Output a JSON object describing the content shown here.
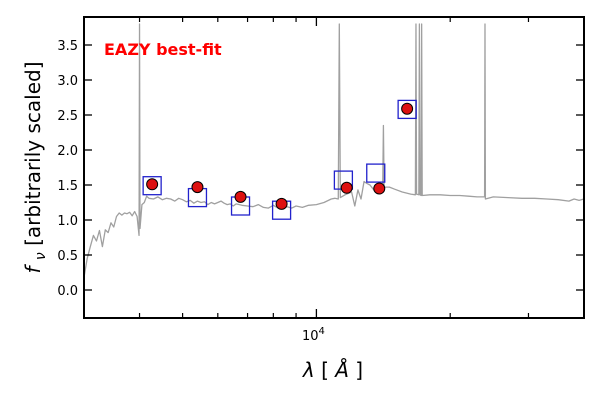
{
  "chart_data": {
    "type": "scatter",
    "xscale": "log",
    "xlim": [
      3000,
      40000
    ],
    "ylim": [
      -0.4,
      3.9
    ],
    "ylabel_parts": [
      "f",
      "ν",
      " [arbitrarily scaled]"
    ],
    "xlabel_parts": [
      "λ",
      " [",
      "Å",
      "]"
    ],
    "annotation": "EAZY best-fit",
    "annotation_color": "#ff0000",
    "template_color": "#a0a0a0",
    "model_point_color": "#dd1111",
    "observed_box_color": "#2222cc",
    "y_ticks": [
      {
        "value": 0.0,
        "label": "0.0"
      },
      {
        "value": 0.5,
        "label": "0.5"
      },
      {
        "value": 1.0,
        "label": "1.0"
      },
      {
        "value": 1.5,
        "label": "1.5"
      },
      {
        "value": 2.0,
        "label": "2.0"
      },
      {
        "value": 2.5,
        "label": "2.5"
      },
      {
        "value": 3.0,
        "label": "3.0"
      },
      {
        "value": 3.5,
        "label": "3.5"
      }
    ],
    "x_major_ticks": [
      {
        "value": 10000,
        "base": "10",
        "exp": "4"
      }
    ],
    "x_minor_ticks": [
      4000,
      5000,
      6000,
      7000,
      8000,
      9000,
      20000,
      30000
    ],
    "series": [
      {
        "role": "observed",
        "marker": "open-square",
        "points": [
          {
            "x": 4270,
            "y": 1.49
          },
          {
            "x": 5400,
            "y": 1.32
          },
          {
            "x": 6750,
            "y": 1.2
          },
          {
            "x": 8350,
            "y": 1.14
          },
          {
            "x": 11500,
            "y": 1.57
          },
          {
            "x": 13600,
            "y": 1.67
          },
          {
            "x": 16000,
            "y": 2.58
          }
        ]
      },
      {
        "role": "model",
        "marker": "filled-circle",
        "points": [
          {
            "x": 4270,
            "y": 1.51
          },
          {
            "x": 5400,
            "y": 1.47
          },
          {
            "x": 6750,
            "y": 1.33
          },
          {
            "x": 8350,
            "y": 1.23
          },
          {
            "x": 11700,
            "y": 1.46
          },
          {
            "x": 13850,
            "y": 1.45
          },
          {
            "x": 16000,
            "y": 2.59
          }
        ]
      },
      {
        "role": "template-spectrum",
        "marker": "line",
        "points": [
          {
            "x": 3000,
            "y": 0.18
          },
          {
            "x": 3050,
            "y": 0.45
          },
          {
            "x": 3100,
            "y": 0.62
          },
          {
            "x": 3150,
            "y": 0.78
          },
          {
            "x": 3200,
            "y": 0.7
          },
          {
            "x": 3250,
            "y": 0.85
          },
          {
            "x": 3300,
            "y": 0.62
          },
          {
            "x": 3350,
            "y": 0.86
          },
          {
            "x": 3400,
            "y": 0.82
          },
          {
            "x": 3450,
            "y": 0.96
          },
          {
            "x": 3500,
            "y": 0.9
          },
          {
            "x": 3550,
            "y": 1.05
          },
          {
            "x": 3600,
            "y": 1.1
          },
          {
            "x": 3650,
            "y": 1.07
          },
          {
            "x": 3700,
            "y": 1.1
          },
          {
            "x": 3750,
            "y": 1.09
          },
          {
            "x": 3800,
            "y": 1.11
          },
          {
            "x": 3850,
            "y": 1.06
          },
          {
            "x": 3900,
            "y": 1.12
          },
          {
            "x": 3950,
            "y": 1.05
          },
          {
            "x": 3990,
            "y": 0.78
          },
          {
            "x": 4000,
            "y": 3.8
          },
          {
            "x": 4010,
            "y": 0.88
          },
          {
            "x": 4050,
            "y": 1.22
          },
          {
            "x": 4100,
            "y": 1.25
          },
          {
            "x": 4150,
            "y": 1.34
          },
          {
            "x": 4200,
            "y": 1.31
          },
          {
            "x": 4300,
            "y": 1.3
          },
          {
            "x": 4400,
            "y": 1.33
          },
          {
            "x": 4500,
            "y": 1.29
          },
          {
            "x": 4600,
            "y": 1.31
          },
          {
            "x": 4700,
            "y": 1.3
          },
          {
            "x": 4800,
            "y": 1.27
          },
          {
            "x": 4900,
            "y": 1.31
          },
          {
            "x": 5000,
            "y": 1.29
          },
          {
            "x": 5100,
            "y": 1.26
          },
          {
            "x": 5200,
            "y": 1.28
          },
          {
            "x": 5300,
            "y": 1.24
          },
          {
            "x": 5400,
            "y": 1.27
          },
          {
            "x": 5500,
            "y": 1.25
          },
          {
            "x": 5600,
            "y": 1.26
          },
          {
            "x": 5700,
            "y": 1.22
          },
          {
            "x": 5800,
            "y": 1.25
          },
          {
            "x": 5900,
            "y": 1.23
          },
          {
            "x": 6000,
            "y": 1.25
          },
          {
            "x": 6100,
            "y": 1.27
          },
          {
            "x": 6200,
            "y": 1.24
          },
          {
            "x": 6300,
            "y": 1.22
          },
          {
            "x": 6400,
            "y": 1.23
          },
          {
            "x": 6500,
            "y": 1.2
          },
          {
            "x": 6600,
            "y": 1.23
          },
          {
            "x": 6800,
            "y": 1.21
          },
          {
            "x": 7000,
            "y": 1.2
          },
          {
            "x": 7200,
            "y": 1.19
          },
          {
            "x": 7400,
            "y": 1.22
          },
          {
            "x": 7600,
            "y": 1.18
          },
          {
            "x": 7800,
            "y": 1.17
          },
          {
            "x": 8000,
            "y": 1.21
          },
          {
            "x": 8200,
            "y": 1.17
          },
          {
            "x": 8400,
            "y": 1.16
          },
          {
            "x": 8600,
            "y": 1.19
          },
          {
            "x": 8800,
            "y": 1.17
          },
          {
            "x": 9000,
            "y": 1.2
          },
          {
            "x": 9300,
            "y": 1.18
          },
          {
            "x": 9600,
            "y": 1.21
          },
          {
            "x": 10000,
            "y": 1.22
          },
          {
            "x": 10400,
            "y": 1.25
          },
          {
            "x": 10800,
            "y": 1.3
          },
          {
            "x": 11000,
            "y": 1.31
          },
          {
            "x": 11200,
            "y": 1.3
          },
          {
            "x": 11260,
            "y": 3.8
          },
          {
            "x": 11320,
            "y": 1.32
          },
          {
            "x": 11600,
            "y": 1.36
          },
          {
            "x": 12000,
            "y": 1.4
          },
          {
            "x": 12200,
            "y": 1.2
          },
          {
            "x": 12400,
            "y": 1.43
          },
          {
            "x": 12600,
            "y": 1.3
          },
          {
            "x": 12800,
            "y": 1.55
          },
          {
            "x": 13000,
            "y": 1.52
          },
          {
            "x": 13200,
            "y": 1.5
          },
          {
            "x": 13500,
            "y": 1.42
          },
          {
            "x": 13800,
            "y": 1.45
          },
          {
            "x": 14100,
            "y": 1.48
          },
          {
            "x": 14150,
            "y": 2.35
          },
          {
            "x": 14200,
            "y": 1.47
          },
          {
            "x": 14600,
            "y": 1.47
          },
          {
            "x": 15000,
            "y": 1.44
          },
          {
            "x": 15600,
            "y": 1.4
          },
          {
            "x": 16300,
            "y": 1.37
          },
          {
            "x": 16700,
            "y": 1.36
          },
          {
            "x": 16750,
            "y": 3.8
          },
          {
            "x": 16800,
            "y": 1.37
          },
          {
            "x": 17000,
            "y": 1.36
          },
          {
            "x": 17050,
            "y": 3.8
          },
          {
            "x": 17100,
            "y": 1.36
          },
          {
            "x": 17200,
            "y": 1.35
          },
          {
            "x": 17250,
            "y": 3.8
          },
          {
            "x": 17300,
            "y": 1.35
          },
          {
            "x": 18000,
            "y": 1.36
          },
          {
            "x": 19000,
            "y": 1.36
          },
          {
            "x": 20000,
            "y": 1.35
          },
          {
            "x": 21000,
            "y": 1.35
          },
          {
            "x": 22000,
            "y": 1.34
          },
          {
            "x": 23000,
            "y": 1.33
          },
          {
            "x": 23900,
            "y": 1.33
          },
          {
            "x": 23950,
            "y": 3.8
          },
          {
            "x": 24000,
            "y": 1.3
          },
          {
            "x": 25000,
            "y": 1.33
          },
          {
            "x": 27000,
            "y": 1.32
          },
          {
            "x": 29000,
            "y": 1.31
          },
          {
            "x": 31000,
            "y": 1.31
          },
          {
            "x": 33000,
            "y": 1.3
          },
          {
            "x": 35000,
            "y": 1.29
          },
          {
            "x": 37000,
            "y": 1.27
          },
          {
            "x": 38000,
            "y": 1.3
          },
          {
            "x": 39000,
            "y": 1.28
          },
          {
            "x": 40000,
            "y": 1.3
          }
        ]
      }
    ]
  }
}
